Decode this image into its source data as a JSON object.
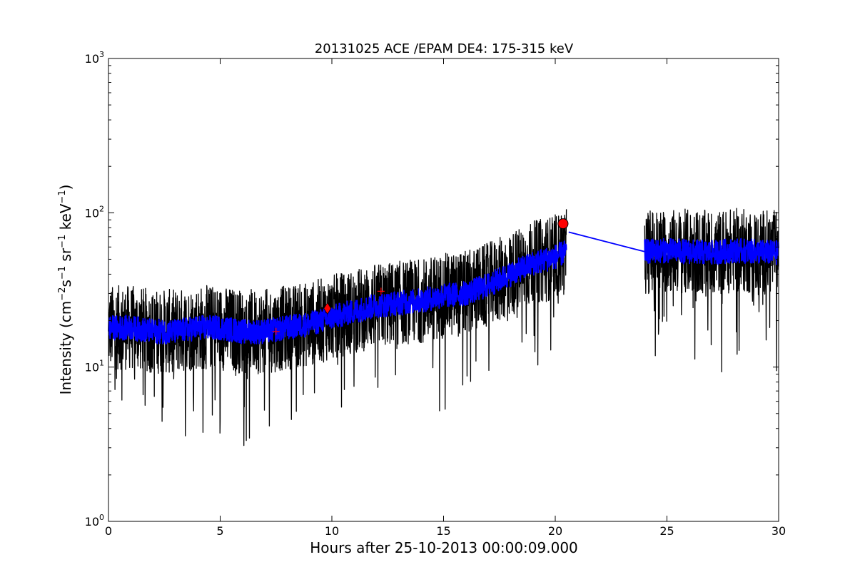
{
  "chart_data": {
    "type": "line",
    "title": "20131025 ACE /EPAM DE4: 175-315 keV",
    "xlabel": "Hours after 25-10-2013 00:00:09.000",
    "ylabel_parts": [
      {
        "t": "Intensity (cm",
        "sup": false
      },
      {
        "t": "−2",
        "sup": true
      },
      {
        "t": "s",
        "sup": false
      },
      {
        "t": "−1",
        "sup": true
      },
      {
        "t": " sr",
        "sup": false
      },
      {
        "t": "−1",
        "sup": true
      },
      {
        "t": " keV",
        "sup": false
      },
      {
        "t": "−1",
        "sup": true
      },
      {
        "t": ")",
        "sup": false
      }
    ],
    "xlim": [
      0,
      30
    ],
    "ylim": [
      1,
      1000
    ],
    "yscale": "log",
    "grid": false,
    "x_ticks": [
      {
        "value": 0,
        "label": "0"
      },
      {
        "value": 5,
        "label": "5"
      },
      {
        "value": 10,
        "label": "10"
      },
      {
        "value": 15,
        "label": "15"
      },
      {
        "value": 20,
        "label": "20"
      },
      {
        "value": 25,
        "label": "25"
      },
      {
        "value": 30,
        "label": "30"
      }
    ],
    "y_ticks": [
      {
        "value": 1,
        "base": "10",
        "exp": "0"
      },
      {
        "value": 10,
        "base": "10",
        "exp": "1"
      },
      {
        "value": 100,
        "base": "10",
        "exp": "2"
      },
      {
        "value": 1000,
        "base": "10",
        "exp": "3"
      }
    ],
    "series": [
      {
        "color": "#000000",
        "style": "raw-noisy",
        "segments": [
          {
            "x": [
              0,
              1,
              2,
              3,
              4,
              5,
              6,
              7,
              8,
              9,
              10,
              11,
              12,
              13,
              14,
              15,
              16,
              17,
              18,
              19,
              20,
              20.5
            ],
            "y": [
              18,
              18,
              17,
              17,
              18,
              18,
              17,
              17,
              18,
              19,
              21,
              23,
              25,
              26,
              27,
              29,
              30,
              34,
              40,
              47,
              52,
              56
            ]
          },
          {
            "x": [
              24,
              25,
              26,
              27,
              28,
              29,
              30
            ],
            "y": [
              56,
              57,
              56,
              55,
              57,
              56,
              55
            ]
          }
        ]
      },
      {
        "color": "#0000ff",
        "style": "smoothed",
        "segments": [
          {
            "x": [
              0,
              1,
              2,
              3,
              4,
              5,
              6,
              7,
              8,
              9,
              10,
              11,
              12,
              13,
              14,
              15,
              16,
              17,
              18,
              19,
              20,
              20.5
            ],
            "y": [
              18,
              18,
              17,
              17,
              18,
              18,
              17,
              17,
              18,
              19,
              21,
              23,
              25,
              26,
              27,
              29,
              30,
              34,
              40,
              47,
              52,
              56
            ]
          },
          {
            "x": [
              20.6,
              24
            ],
            "y": [
              75,
              56
            ]
          },
          {
            "x": [
              24,
              25,
              26,
              27,
              28,
              29,
              30
            ],
            "y": [
              56,
              57,
              56,
              55,
              57,
              56,
              55
            ]
          }
        ]
      }
    ],
    "markers": [
      {
        "shape": "circle",
        "x": 20.35,
        "y": 85,
        "color": "#ff0000"
      },
      {
        "shape": "diamond",
        "x": 9.8,
        "y": 24,
        "color": "#ff0000"
      },
      {
        "shape": "plus",
        "x": 7.5,
        "y": 17,
        "color": "#ff0000"
      },
      {
        "shape": "plus",
        "x": 12.2,
        "y": 31,
        "color": "#ff0000"
      }
    ]
  }
}
